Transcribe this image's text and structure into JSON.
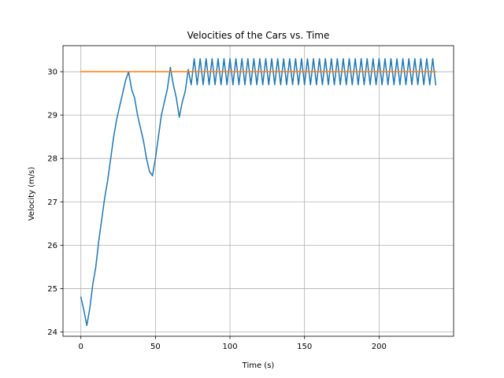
{
  "chart_data": {
    "type": "line",
    "title": "Velocities of the Cars vs. Time",
    "xlabel": "Time (s)",
    "ylabel": "Velocity (m/s)",
    "xlim": [
      -12,
      250
    ],
    "ylim": [
      23.9,
      30.6
    ],
    "xticks": [
      0,
      50,
      100,
      150,
      200
    ],
    "yticks": [
      24,
      25,
      26,
      27,
      28,
      29,
      30
    ],
    "grid": true,
    "legend": "none",
    "series": [
      {
        "color": "#1f77b4",
        "x": [
          0,
          2,
          4,
          6,
          8,
          10,
          12,
          14,
          16,
          18,
          20,
          22,
          24,
          26,
          28,
          30,
          32,
          34,
          36,
          38,
          40,
          42,
          44,
          46,
          48,
          49,
          50,
          52,
          54,
          56,
          58,
          60,
          62,
          64,
          66,
          68,
          70,
          72,
          74,
          76,
          78,
          80,
          82,
          84,
          86,
          88,
          90,
          92,
          94,
          96,
          98,
          100,
          102,
          104,
          106,
          108,
          110,
          112,
          114,
          116,
          118,
          120,
          122,
          124,
          126,
          128,
          130,
          132,
          134,
          136,
          138,
          140,
          142,
          144,
          146,
          148,
          150,
          152,
          154,
          156,
          158,
          160,
          162,
          164,
          166,
          168,
          170,
          172,
          174,
          176,
          178,
          180,
          182,
          184,
          186,
          188,
          190,
          192,
          194,
          196,
          198,
          200,
          202,
          204,
          206,
          208,
          210,
          212,
          214,
          216,
          218,
          220,
          222,
          224,
          226,
          228,
          230,
          232,
          234,
          236,
          238
        ],
        "values": [
          24.8,
          24.5,
          24.15,
          24.55,
          25.1,
          25.5,
          26.1,
          26.6,
          27.1,
          27.5,
          28.0,
          28.5,
          28.9,
          29.2,
          29.5,
          29.8,
          30.0,
          29.6,
          29.4,
          29.0,
          28.7,
          28.4,
          28.0,
          27.7,
          27.6,
          27.8,
          28.0,
          28.5,
          29.0,
          29.3,
          29.6,
          30.1,
          29.7,
          29.4,
          28.95,
          29.3,
          29.55,
          30.05,
          29.7,
          30.3,
          29.7,
          30.3,
          29.7,
          30.3,
          29.7,
          30.3,
          29.7,
          30.3,
          29.7,
          30.3,
          29.7,
          30.3,
          29.7,
          30.3,
          29.7,
          30.3,
          29.7,
          30.3,
          29.7,
          30.3,
          29.7,
          30.3,
          29.7,
          30.3,
          29.7,
          30.3,
          29.7,
          30.3,
          29.7,
          30.3,
          29.7,
          30.3,
          29.7,
          30.3,
          29.7,
          30.3,
          29.7,
          30.3,
          29.7,
          30.3,
          29.7,
          30.3,
          29.7,
          30.3,
          29.7,
          30.3,
          29.7,
          30.3,
          29.7,
          30.3,
          29.7,
          30.3,
          29.7,
          30.3,
          29.7,
          30.3,
          29.7,
          30.3,
          29.7,
          30.3,
          29.7,
          30.3,
          29.7,
          30.3,
          29.7,
          30.3,
          29.7,
          30.3,
          29.7,
          30.3,
          29.7,
          30.3,
          29.7,
          30.3,
          29.7,
          30.3,
          29.7,
          30.3,
          29.7,
          30.3,
          29.7
        ]
      },
      {
        "color": "#ff7f0e",
        "x": [
          0,
          238
        ],
        "values": [
          30.0,
          30.0
        ]
      }
    ]
  }
}
